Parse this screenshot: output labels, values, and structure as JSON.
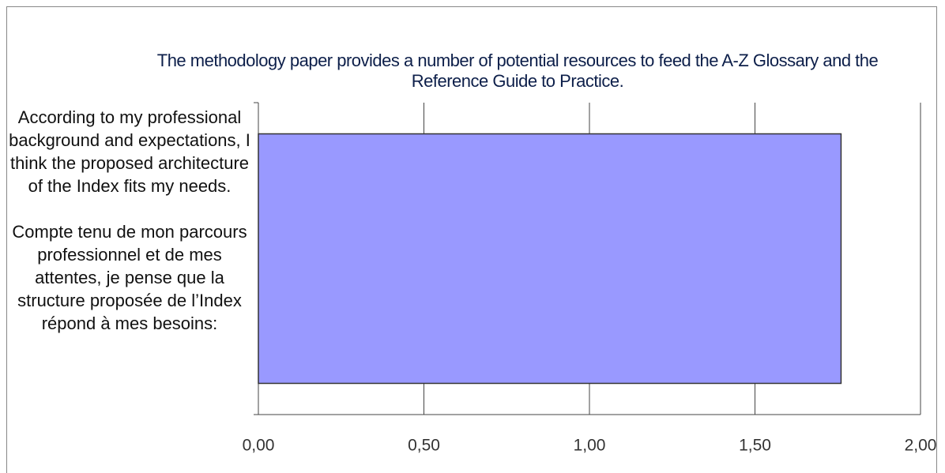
{
  "chart_data": {
    "type": "bar",
    "orientation": "horizontal",
    "title": "The methodology paper provides a number of potential resources to feed the A-Z Glossary and the Reference Guide to Practice.",
    "categories": [
      "According to my professional background and expectations, I think the proposed architecture of the Index fits my needs.\n\nCompte tenu de mon parcours professionnel et de mes attentes, je pense que la structure proposée de l’Index répond à mes besoins:"
    ],
    "values": [
      1.76
    ],
    "color": "#9999ff",
    "xlim": [
      0,
      2
    ],
    "xticks": [
      {
        "value": 0,
        "label": "0,00"
      },
      {
        "value": 0.5,
        "label": "0,50"
      },
      {
        "value": 1,
        "label": "1,00"
      },
      {
        "value": 1.5,
        "label": "1,50"
      },
      {
        "value": 2,
        "label": "2,00"
      }
    ],
    "grid": true
  }
}
